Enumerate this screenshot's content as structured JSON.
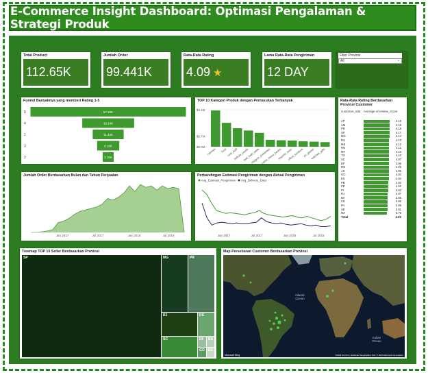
{
  "title": "E-Commerce Insight Dashboard: Optimasi Pengalaman & Strategi Produk",
  "kpis": {
    "total_product": {
      "label": "Total Product",
      "value": "112.65K"
    },
    "jumlah_order": {
      "label": "Jumlah Order",
      "value": "99.441K"
    },
    "rating": {
      "label": "Rata-Rata Rating",
      "value": "4.09"
    },
    "lama": {
      "label": "Lama Rata-Rata Pengiriman",
      "value": "12 DAY"
    }
  },
  "filter": {
    "label": "Filter Provinsi",
    "value": "All"
  },
  "funnel": {
    "title": "Funnel Banyaknya yang memberi Rating 1-5",
    "levels": [
      {
        "rating": "5",
        "value": 57.33,
        "label": "57.33K"
      },
      {
        "rating": "4",
        "value": 19.14,
        "label": "19.14K"
      },
      {
        "rating": "1",
        "value": 11.42,
        "label": "11.42K"
      },
      {
        "rating": "3",
        "value": 8.18,
        "label": "8.18K"
      },
      {
        "rating": "2",
        "value": 3.15,
        "label": "3.15K"
      }
    ]
  },
  "top10": {
    "title": "TOP 10 Kategori Produk dengan Pemasukan Terbanyak",
    "yticks": [
      "$2.4M",
      "$0.7M",
      "$0.0M"
    ],
    "categories": [
      "Lainnya",
      "food",
      "cool_stuff",
      "beleza_saude",
      "bed_bath_table",
      "relogios_presentes",
      "cama_mesa_banho",
      "esporte_lazer",
      "office_furniture",
      "pc_gamer",
      "watches_gifts"
    ],
    "values": [
      2.35,
      1.55,
      1.2,
      1.05,
      0.9,
      0.45,
      0.42,
      0.4,
      0.35,
      0.33,
      0.3
    ]
  },
  "rating_table": {
    "title": "Rata-Rata Rating Berdasarkan Provinsi Customer",
    "col1": "customer_stat",
    "col2": "Average of review_score",
    "rows": [
      {
        "state": "AP",
        "value": "4.19"
      },
      {
        "state": "AM",
        "value": "4.18"
      },
      {
        "state": "PR",
        "value": "4.18"
      },
      {
        "state": "SP",
        "value": "4.17"
      },
      {
        "state": "MG",
        "value": "4.14"
      },
      {
        "state": "RS",
        "value": "4.13"
      },
      {
        "state": "MS",
        "value": "4.12"
      },
      {
        "state": "RN",
        "value": "4.11"
      },
      {
        "state": "MT",
        "value": "4.10"
      },
      {
        "state": "TO",
        "value": "4.10"
      },
      {
        "state": "SC",
        "value": "4.07"
      },
      {
        "state": "DF",
        "value": "4.06"
      },
      {
        "state": "RO",
        "value": "4.05"
      },
      {
        "state": "AC",
        "value": "4.05"
      },
      {
        "state": "GO",
        "value": "4.04"
      },
      {
        "state": "ES",
        "value": "4.04"
      },
      {
        "state": "PB",
        "value": "4.02"
      },
      {
        "state": "PE",
        "value": "4.01"
      },
      {
        "state": "PI",
        "value": "3.92"
      },
      {
        "state": "RJ",
        "value": "3.87"
      },
      {
        "state": "BA",
        "value": "3.86"
      },
      {
        "state": "CE",
        "value": "3.85"
      },
      {
        "state": "PA",
        "value": "3.85"
      },
      {
        "state": "SE",
        "value": "3.81"
      },
      {
        "state": "MA",
        "value": "3.76"
      }
    ],
    "total_label": "Total",
    "total_value": "4.09"
  },
  "orders_chart": {
    "title": "Jumlah Order Berdasarkan Bulan dan Tahun Penjualan",
    "x_labels": [
      "Jan 2017",
      "Jul 2017",
      "Jan 2018",
      "Jul 2018"
    ],
    "values": [
      0,
      0,
      1,
      2,
      4,
      14,
      16,
      20,
      26,
      30,
      32,
      34,
      36,
      40,
      48,
      46,
      50,
      56,
      66,
      58,
      68,
      64,
      66,
      60,
      66,
      62,
      64,
      62,
      0
    ]
  },
  "compare_chart": {
    "title": "Perbandingan Estimasi Pengiriman dengan Aktual Pengiriman",
    "legend": [
      "Avg_Estimasi_Pengiriman",
      "Avg_Delivery_Days"
    ],
    "x_labels": [
      "Jan 2017",
      "Jul 2017",
      "Jan 2018",
      "Jul 2018"
    ],
    "series_a": [
      58,
      52,
      40,
      30,
      28,
      26,
      27,
      26,
      25,
      24,
      26,
      27,
      30,
      26,
      24,
      23,
      22,
      21,
      22,
      23,
      21,
      20,
      22,
      20,
      18,
      16,
      18,
      22
    ],
    "series_b": [
      40,
      20,
      10,
      13,
      14,
      13,
      12,
      13,
      12,
      12,
      13,
      14,
      20,
      15,
      13,
      12,
      13,
      11,
      10,
      11,
      12,
      10,
      9,
      10,
      8,
      8,
      9
    ],
    "colors": [
      "#3b9a2a",
      "#1e2a66"
    ]
  },
  "treemap": {
    "title": "Treemap TOP 10 Seller Berdasarkan Provinsi",
    "cells": [
      "SP",
      "MG",
      "PR",
      "RJ",
      "RS",
      "SC",
      "DF",
      "BA",
      "GO",
      "ES"
    ]
  },
  "map": {
    "title": "Map Persebaran Customer Berdasarkan Provinsi",
    "ocean_labels": [
      "Atlantic Ocean",
      "Indian Ocean"
    ],
    "footer": "©2024 TomTom, Earthstar Geographics SIO, © 2024 Microsoft Corporation",
    "brand": "Microsoft Bing"
  }
}
